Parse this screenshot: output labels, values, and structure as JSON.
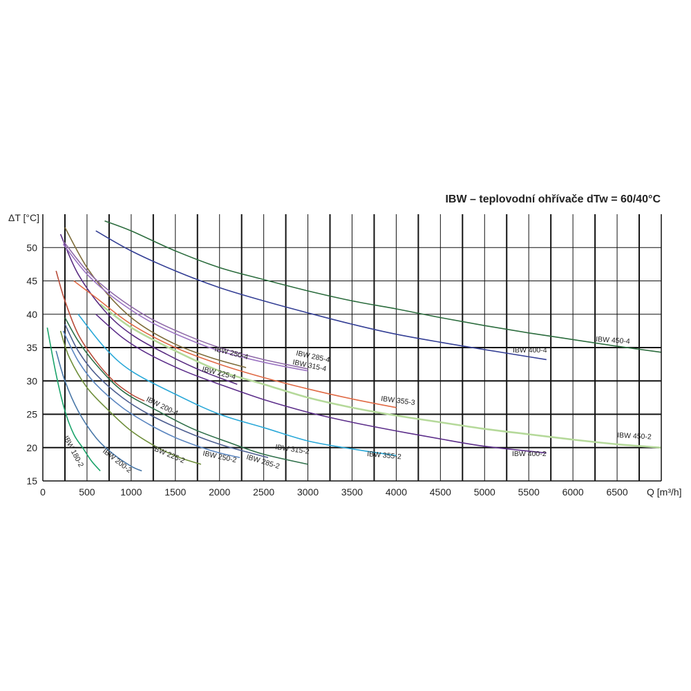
{
  "chart_data": {
    "type": "line",
    "title": "IBW – teplovodní ohřívače dTw = 60/40°C",
    "xlabel": "Q [m³/h]",
    "ylabel": "ΔT [°C]",
    "xlim": [
      0,
      7000
    ],
    "ylim": [
      15,
      55
    ],
    "x_ticks": [
      "0",
      "500",
      "1000",
      "1500",
      "2000",
      "2500",
      "3000",
      "3500",
      "4000",
      "4500",
      "5000",
      "5500",
      "6000",
      "6500"
    ],
    "y_ticks": [
      "15",
      "20",
      "25",
      "30",
      "35",
      "40",
      "45",
      "50"
    ],
    "grid": true,
    "series": [
      {
        "name": "IBW 180-2",
        "color": "#1aa36a",
        "x": [
          50,
          150,
          250,
          350,
          450,
          550,
          650
        ],
        "y": [
          38,
          31,
          25.5,
          22,
          20,
          18,
          16.5
        ]
      },
      {
        "name": "IBW 200-2",
        "color": "#4a78a8",
        "x": [
          150,
          250,
          400,
          600,
          800,
          1000,
          1120
        ],
        "y": [
          34.5,
          30,
          25.5,
          21.5,
          19,
          17.2,
          16.5
        ]
      },
      {
        "name": "IBW 225-2",
        "color": "#6e8e3a",
        "x": [
          200,
          300,
          500,
          750,
          1000,
          1300,
          1550,
          1790
        ],
        "y": [
          37.5,
          33.5,
          29,
          25.5,
          22.5,
          20,
          18.5,
          17.5
        ]
      },
      {
        "name": "IBW 250-2",
        "color": "#5b86c0",
        "x": [
          230,
          400,
          600,
          900,
          1200,
          1500,
          1800,
          2000,
          2230
        ],
        "y": [
          37.5,
          33,
          29.5,
          26,
          23.5,
          21.5,
          20,
          19.2,
          18.5
        ]
      },
      {
        "name": "IBW 285-2",
        "color": "#4d5e90",
        "x": [
          250,
          400,
          600,
          900,
          1200,
          1600,
          2000,
          2350,
          2550
        ],
        "y": [
          38.5,
          34.5,
          31,
          27.5,
          25,
          22.5,
          20.5,
          19.2,
          18.5
        ]
      },
      {
        "name": "IBW 315-2",
        "color": "#2e6f49",
        "x": [
          250,
          400,
          600,
          900,
          1300,
          1700,
          2100,
          2500,
          3000
        ],
        "y": [
          39.5,
          36,
          32.5,
          28.5,
          25.5,
          22.8,
          20.8,
          19,
          17.5
        ]
      },
      {
        "name": "IBW 355-2",
        "color": "#29a8d8",
        "x": [
          400,
          700,
          1000,
          1500,
          2000,
          2500,
          3000,
          3500,
          4000
        ],
        "y": [
          40,
          35,
          31.5,
          28,
          25,
          23,
          21,
          19.8,
          18.8
        ]
      },
      {
        "name": "IBW 400-2",
        "color": "#5c2e8a",
        "x": [
          600,
          900,
          1200,
          1600,
          2000,
          2500,
          3000,
          3500,
          4000,
          4500,
          5000,
          5700
        ],
        "y": [
          40,
          36.5,
          34,
          31.5,
          29.5,
          27.2,
          25.3,
          23.8,
          22.5,
          21.3,
          20.2,
          19.2
        ]
      },
      {
        "name": "IBW 450-2",
        "color": "#b5d99a",
        "x": [
          650,
          1000,
          1500,
          2000,
          2500,
          3000,
          3500,
          4000,
          4500,
          5000,
          5500,
          6000,
          6500,
          7000
        ],
        "y": [
          41.5,
          38,
          34.5,
          31.5,
          29.5,
          27.5,
          26,
          24.8,
          23.8,
          22.8,
          22,
          21.2,
          20.5,
          20
        ]
      },
      {
        "name": "IBW 200-4",
        "color": "#b84c3a",
        "x": [
          150,
          250,
          400,
          600,
          800,
          1000,
          1150
        ],
        "y": [
          46.5,
          42,
          37,
          33,
          30,
          28,
          27
        ]
      },
      {
        "name": "IBW 225-4",
        "color": "#5a2d82",
        "x": [
          200,
          400,
          700,
          1000,
          1400,
          1800,
          2200
        ],
        "y": [
          52,
          46,
          40.5,
          37,
          34,
          31.5,
          29.5
        ]
      },
      {
        "name": "IBW 250-4",
        "color": "#7e6c3a",
        "x": [
          250,
          500,
          800,
          1100,
          1500,
          1900,
          2300
        ],
        "y": [
          53,
          47,
          42,
          38.5,
          35.5,
          33.5,
          32
        ]
      },
      {
        "name": "IBW 285-4",
        "color": "#9b73c2",
        "x": [
          230,
          500,
          800,
          1200,
          1600,
          2000,
          2500,
          3000
        ],
        "y": [
          50.5,
          46,
          42.5,
          39,
          36.5,
          34.5,
          32.8,
          31.5
        ]
      },
      {
        "name": "IBW 315-4",
        "color": "#8f6aa8",
        "x": [
          230,
          500,
          800,
          1200,
          1600,
          2000,
          2500,
          3000
        ],
        "y": [
          51,
          46.5,
          43,
          39.5,
          37,
          35,
          33.2,
          31.8
        ]
      },
      {
        "name": "IBW 355-3",
        "color": "#e06a45",
        "x": [
          350,
          600,
          1000,
          1500,
          2000,
          2500,
          3000,
          3500,
          4000
        ],
        "y": [
          45,
          42.5,
          38.5,
          35,
          32.5,
          30.5,
          28.8,
          27.3,
          26
        ]
      },
      {
        "name": "IBW 400-4",
        "color": "#343f95",
        "x": [
          600,
          1000,
          1500,
          2000,
          2500,
          3000,
          3500,
          4000,
          4500,
          5000,
          5700
        ],
        "y": [
          52.5,
          49.5,
          46.5,
          44,
          42,
          40.2,
          38.5,
          37,
          35.8,
          34.7,
          33.2
        ]
      },
      {
        "name": "IBW 450-4",
        "color": "#2b6c3d",
        "x": [
          700,
          1000,
          1500,
          2000,
          2500,
          3000,
          3500,
          4000,
          4500,
          5000,
          5500,
          6000,
          6500,
          7000
        ],
        "y": [
          54,
          52.5,
          49.5,
          47,
          45.2,
          43.5,
          42,
          40.8,
          39.5,
          38.3,
          37.2,
          36.2,
          35.2,
          34.3
        ]
      }
    ]
  }
}
